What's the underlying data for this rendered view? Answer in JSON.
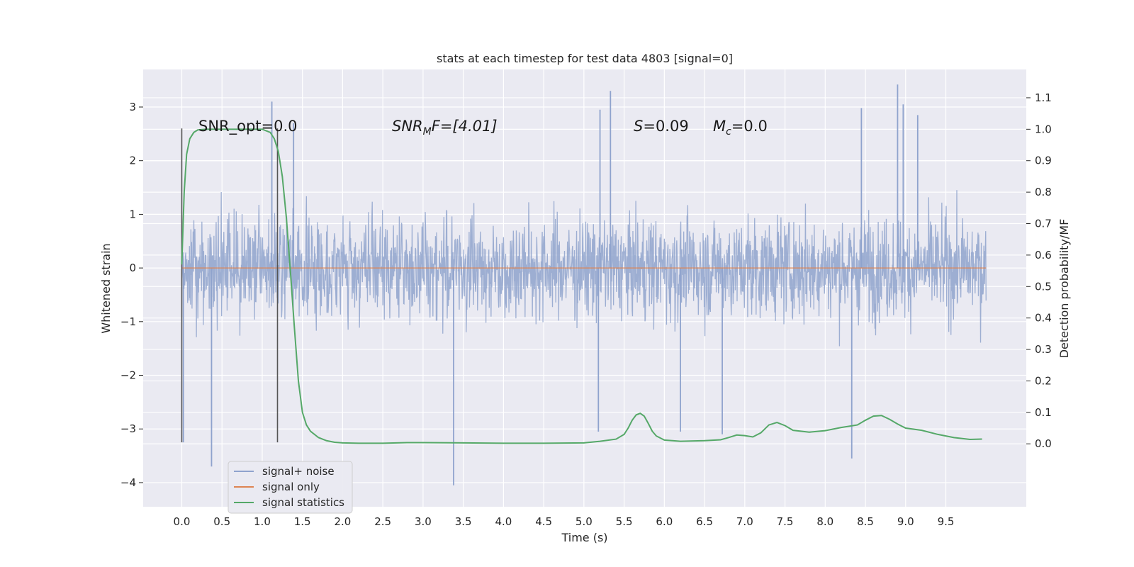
{
  "chart_data": {
    "type": "line",
    "title": "stats at each timestep for test data 4803 [signal=0]",
    "xlabel": "Time (s)",
    "ylabel": "Whitened strain",
    "y2label": "Detection probability/MF",
    "xlim": [
      -0.48,
      10.5
    ],
    "ylim": [
      -4.45,
      3.7
    ],
    "y2lim": [
      -0.2,
      1.19
    ],
    "x_ticks": [
      0.0,
      0.5,
      1.0,
      1.5,
      2.0,
      2.5,
      3.0,
      3.5,
      4.0,
      4.5,
      5.0,
      5.5,
      6.0,
      6.5,
      7.0,
      7.5,
      8.0,
      8.5,
      9.0,
      9.5
    ],
    "x_tick_labels": [
      "0.0",
      "0.5",
      "1.0",
      "1.5",
      "2.0",
      "2.5",
      "3.0",
      "3.5",
      "4.0",
      "4.5",
      "5.0",
      "5.5",
      "6.0",
      "6.5",
      "7.0",
      "7.5",
      "8.0",
      "8.5",
      "9.0",
      "9.5"
    ],
    "y_ticks": [
      -4,
      -3,
      -2,
      -1,
      0,
      1,
      2,
      3
    ],
    "y_tick_labels": [
      "−4",
      "−3",
      "−2",
      "−1",
      "0",
      "1",
      "2",
      "3"
    ],
    "y2_ticks": [
      0.0,
      0.1,
      0.2,
      0.3,
      0.4,
      0.5,
      0.6,
      0.7,
      0.8,
      0.9,
      1.0,
      1.1
    ],
    "y2_tick_labels": [
      "0.0",
      "0.1",
      "0.2",
      "0.3",
      "0.4",
      "0.5",
      "0.6",
      "0.7",
      "0.8",
      "0.9",
      "1.0",
      "1.1"
    ],
    "grid": true,
    "legend_position": "lower-left",
    "annotations": {
      "snr_opt": "SNR_opt=0.0",
      "snr_mf_var": "SNR",
      "snr_mf_sub": "M",
      "snr_mf_rest": "F=[4.01]",
      "s_var": "S",
      "s_rest": "=0.09",
      "mc_var": "M",
      "mc_sub": "c",
      "mc_rest": "=0.0"
    },
    "vertical_markers": [
      0.0,
      1.19
    ],
    "series": [
      {
        "name": "signal+ noise",
        "color": "#8fa3cd",
        "x_range": [
          0.0,
          10.0
        ],
        "typical_band": [
          -1.3,
          1.4
        ],
        "peaks": [
          {
            "x": 0.02,
            "y": -3.25
          },
          {
            "x": 0.37,
            "y": -3.7
          },
          {
            "x": 1.12,
            "y": 3.1
          },
          {
            "x": 1.39,
            "y": 2.7
          },
          {
            "x": 3.38,
            "y": -4.05
          },
          {
            "x": 5.2,
            "y": 2.95
          },
          {
            "x": 5.33,
            "y": 3.3
          },
          {
            "x": 5.18,
            "y": -3.05
          },
          {
            "x": 6.2,
            "y": -3.05
          },
          {
            "x": 6.72,
            "y": -3.1
          },
          {
            "x": 8.33,
            "y": -3.55
          },
          {
            "x": 8.45,
            "y": 2.98
          },
          {
            "x": 8.9,
            "y": 3.42
          },
          {
            "x": 8.97,
            "y": 3.05
          },
          {
            "x": 9.15,
            "y": 2.85
          }
        ]
      },
      {
        "name": "signal only",
        "color": "#dd8452",
        "x": [
          0.0,
          10.0
        ],
        "y": [
          0.0,
          0.0
        ]
      },
      {
        "name": "signal statistics",
        "color": "#55a868",
        "axis": "right",
        "x": [
          0.0,
          0.03,
          0.06,
          0.1,
          0.15,
          0.2,
          0.3,
          0.5,
          0.8,
          1.0,
          1.1,
          1.15,
          1.2,
          1.25,
          1.3,
          1.35,
          1.4,
          1.45,
          1.5,
          1.55,
          1.6,
          1.7,
          1.8,
          1.9,
          2.0,
          2.2,
          2.5,
          2.8,
          3.0,
          3.5,
          4.0,
          4.5,
          5.0,
          5.2,
          5.4,
          5.5,
          5.55,
          5.6,
          5.65,
          5.7,
          5.75,
          5.8,
          5.85,
          5.9,
          6.0,
          6.2,
          6.5,
          6.7,
          6.8,
          6.9,
          7.0,
          7.1,
          7.2,
          7.3,
          7.4,
          7.5,
          7.6,
          7.8,
          8.0,
          8.2,
          8.4,
          8.5,
          8.6,
          8.7,
          8.8,
          8.9,
          9.0,
          9.2,
          9.4,
          9.6,
          9.8,
          9.95
        ],
        "y": [
          0.57,
          0.8,
          0.92,
          0.97,
          0.99,
          0.998,
          1.0,
          1.0,
          1.0,
          1.0,
          0.99,
          0.97,
          0.93,
          0.85,
          0.72,
          0.55,
          0.37,
          0.2,
          0.1,
          0.06,
          0.04,
          0.02,
          0.01,
          0.005,
          0.003,
          0.002,
          0.002,
          0.004,
          0.004,
          0.003,
          0.002,
          0.002,
          0.003,
          0.008,
          0.015,
          0.03,
          0.05,
          0.075,
          0.092,
          0.097,
          0.088,
          0.065,
          0.04,
          0.025,
          0.012,
          0.008,
          0.01,
          0.013,
          0.02,
          0.028,
          0.026,
          0.022,
          0.035,
          0.06,
          0.068,
          0.058,
          0.043,
          0.037,
          0.042,
          0.052,
          0.06,
          0.075,
          0.088,
          0.09,
          0.078,
          0.063,
          0.05,
          0.043,
          0.03,
          0.02,
          0.014,
          0.015
        ]
      }
    ]
  }
}
